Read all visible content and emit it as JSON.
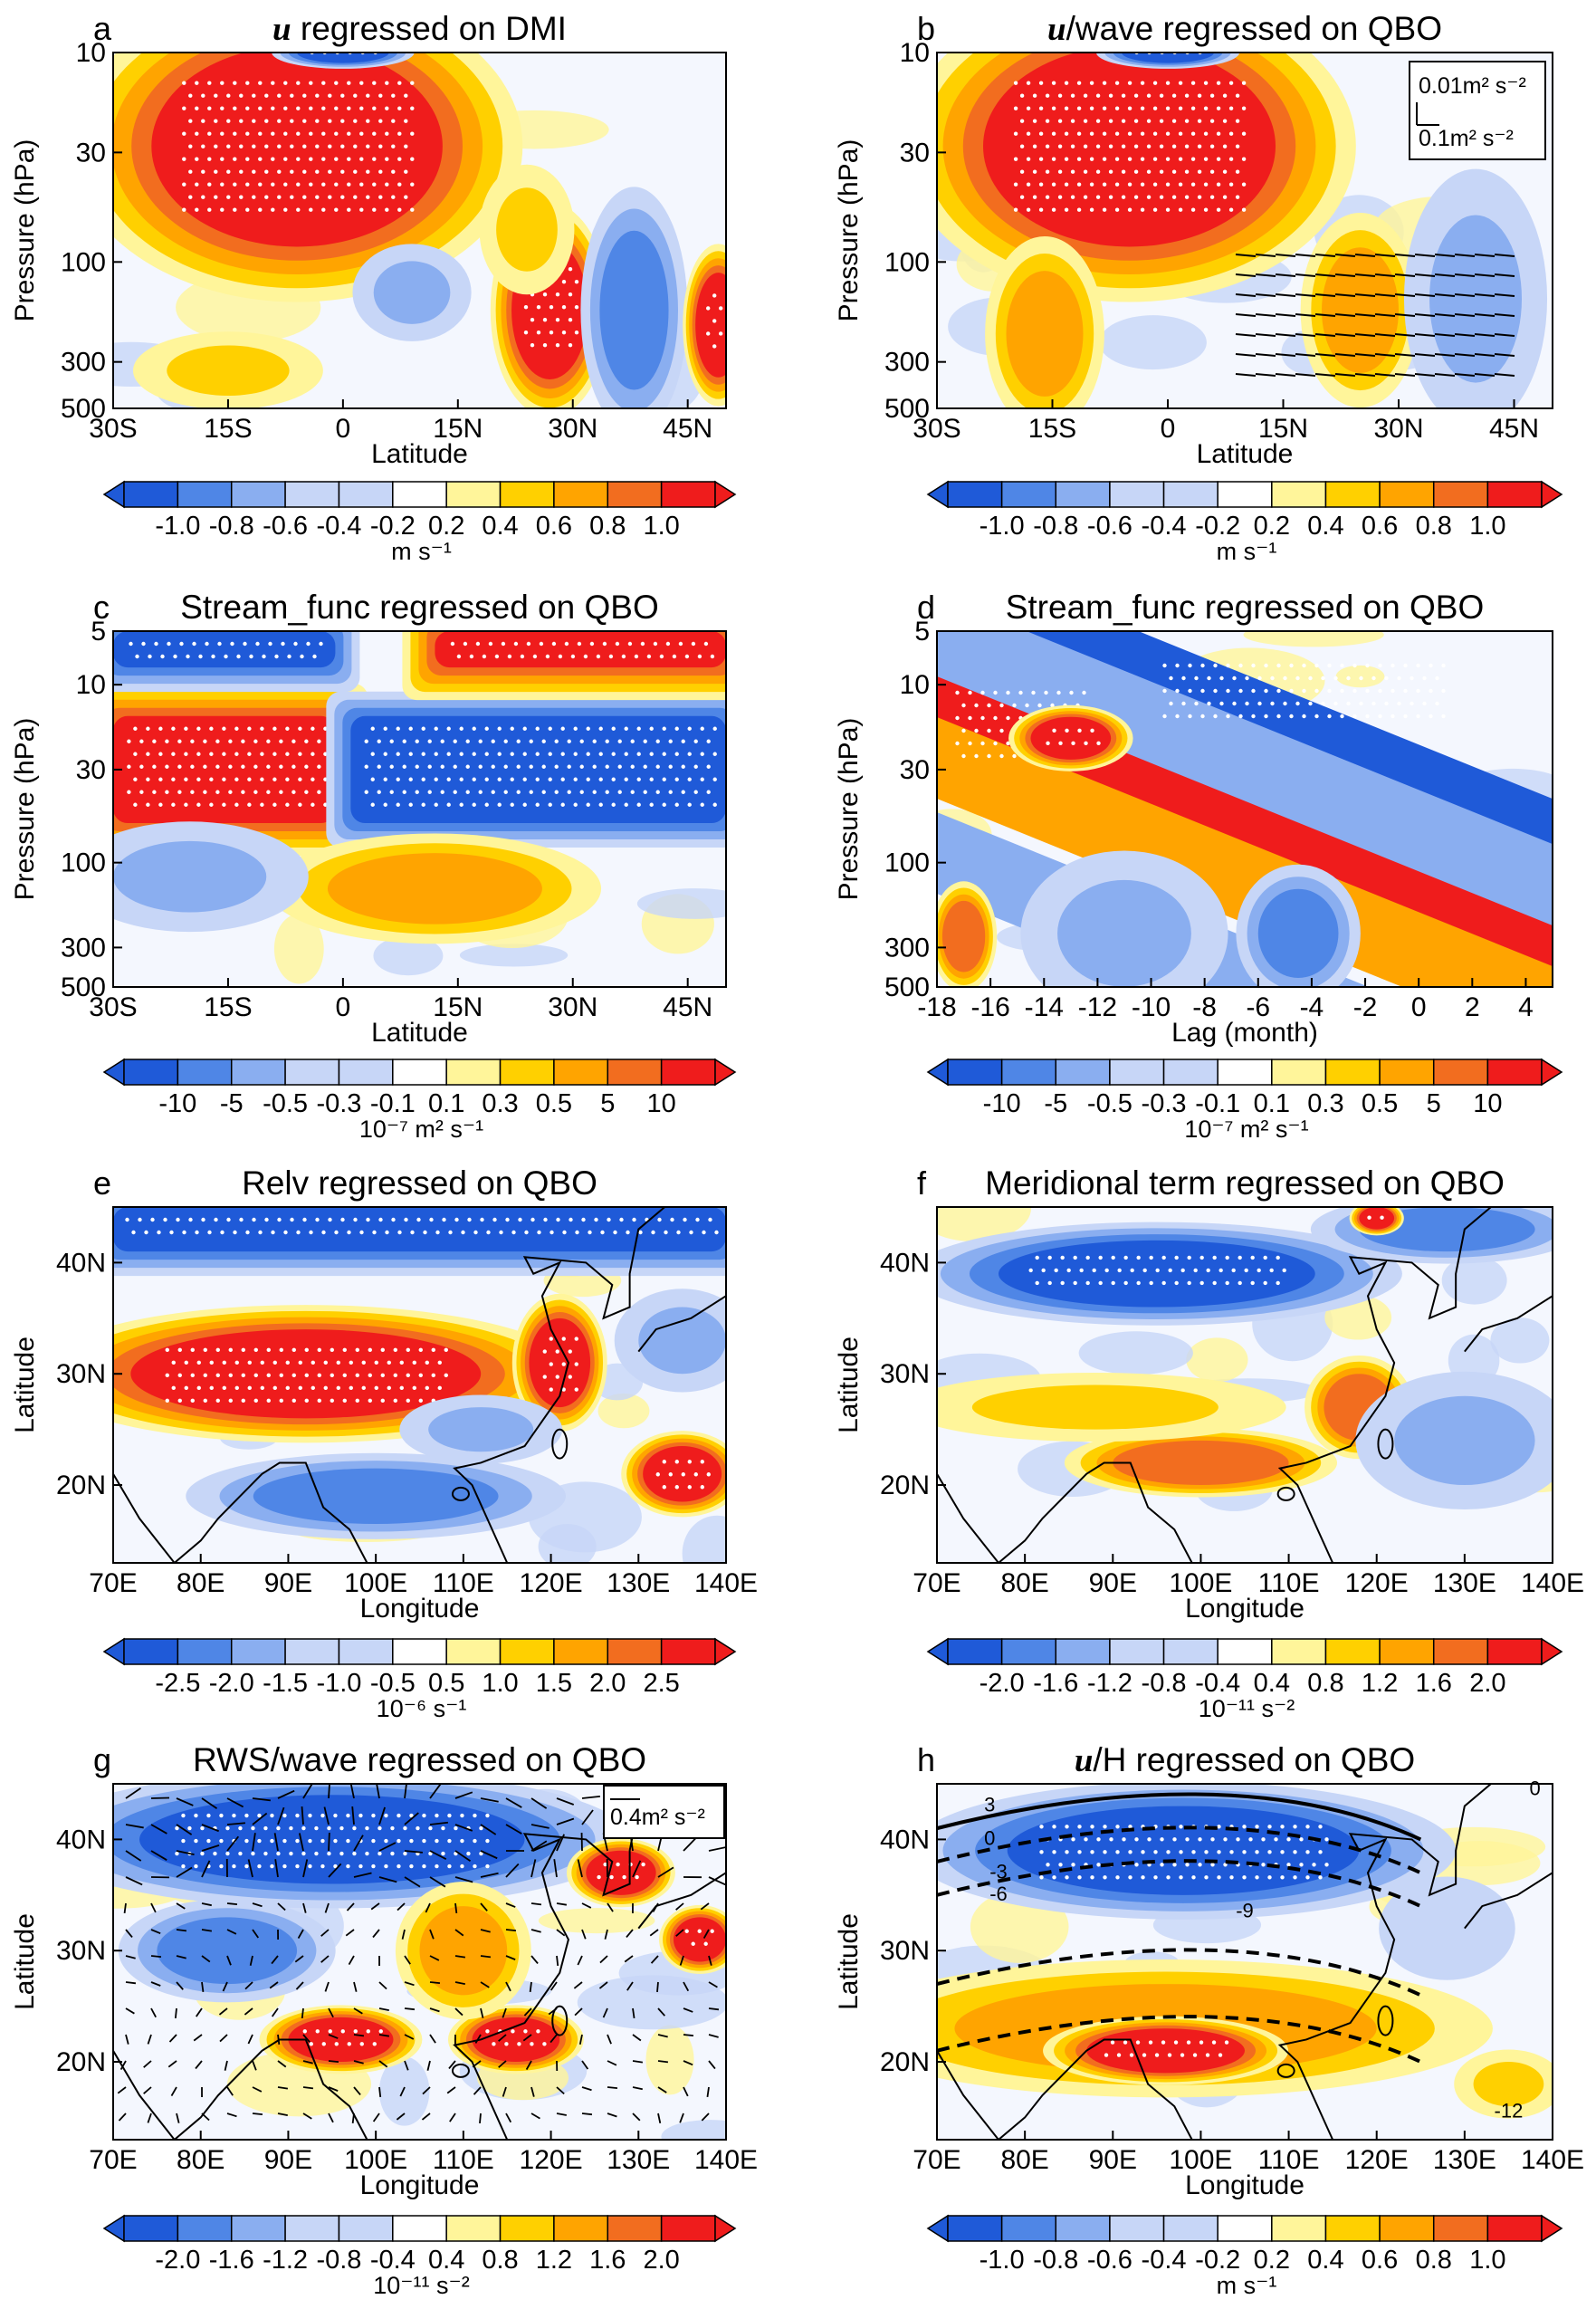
{
  "colors": {
    "scale": [
      "#1f5ad8",
      "#4f86e6",
      "#8aaef0",
      "#c7d6f7",
      "#ffffff",
      "#fff59a",
      "#ffd000",
      "#ffa400",
      "#f26d1f",
      "#ef1c1c"
    ],
    "stipple": "#ffffff",
    "frame": "#000000"
  },
  "colorbars": {
    "cb_ms": {
      "labels": [
        "-1.0",
        "-0.8",
        "-0.6",
        "-0.4",
        "-0.2",
        "0.2",
        "0.4",
        "0.6",
        "0.8",
        "1.0"
      ],
      "unit": "m s⁻¹"
    },
    "cb_stream": {
      "labels": [
        "-10",
        "-5",
        "-0.5",
        "-0.3",
        "-0.1",
        "0.1",
        "0.3",
        "0.5",
        "5",
        "10"
      ],
      "unit": "10⁻⁷ m² s⁻¹"
    },
    "cb_relv": {
      "labels": [
        "-2.5",
        "-2.0",
        "-1.5",
        "-1.0",
        "-0.5",
        "0.5",
        "1.0",
        "1.5",
        "2.0",
        "2.5"
      ],
      "unit": "10⁻⁶ s⁻¹"
    },
    "cb_mer": {
      "labels": [
        "-2.0",
        "-1.6",
        "-1.2",
        "-0.8",
        "-0.4",
        "0.4",
        "0.8",
        "1.2",
        "1.6",
        "2.0"
      ],
      "unit": "10⁻¹¹ s⁻²"
    }
  },
  "chart_data": [
    {
      "id": "a",
      "type": "heatmap",
      "label": "a",
      "title_bold": "u",
      "title_rest": " regressed on DMI",
      "xlabel": "Latitude",
      "ylabel": "Pressure (hPa)",
      "x_ticks": [
        "30S",
        "15S",
        "0",
        "15N",
        "30N",
        "45N"
      ],
      "x_values": [
        -30,
        -15,
        0,
        15,
        30,
        45
      ],
      "xlim": [
        -30,
        50
      ],
      "y_ticks": [
        "10",
        "30",
        "100",
        "300",
        "500"
      ],
      "y_values": [
        10,
        30,
        100,
        300,
        500
      ],
      "ylim": [
        10,
        500
      ],
      "y_scale": "log",
      "colorbar": "cb_ms",
      "features": [
        {
          "kind": "blob",
          "x": -6,
          "y": 28,
          "rx": 19,
          "ry": 0.48,
          "level": 9
        },
        {
          "kind": "blob",
          "x": 27,
          "y": 170,
          "rx": 5,
          "ry": 0.33,
          "level": 9
        },
        {
          "kind": "blob",
          "x": 9,
          "y": 140,
          "rx": 5,
          "ry": 0.15,
          "level": 2
        },
        {
          "kind": "blob",
          "x": 38,
          "y": 170,
          "rx": 4.5,
          "ry": 0.38,
          "level": 1
        },
        {
          "kind": "blob",
          "x": 49,
          "y": 200,
          "rx": 3,
          "ry": 0.25,
          "level": 9
        },
        {
          "kind": "blob",
          "x": -15,
          "y": 330,
          "rx": 8,
          "ry": 0.12,
          "level": 6
        },
        {
          "kind": "blob",
          "x": 0,
          "y": 10,
          "rx": 6,
          "ry": 0.05,
          "level": 0
        },
        {
          "kind": "blob",
          "x": 24,
          "y": 70,
          "rx": 4,
          "ry": 0.2,
          "level": 6
        }
      ]
    },
    {
      "id": "b",
      "type": "heatmap",
      "label": "b",
      "title_bold": "u",
      "title_rest": "/wave regressed on QBO",
      "xlabel": "Latitude",
      "ylabel": "Pressure (hPa)",
      "x_ticks": [
        "30S",
        "15S",
        "0",
        "15N",
        "30N",
        "45N"
      ],
      "x_values": [
        -30,
        -15,
        0,
        15,
        30,
        45
      ],
      "xlim": [
        -30,
        50
      ],
      "y_ticks": [
        "10",
        "30",
        "100",
        "300",
        "500"
      ],
      "y_values": [
        10,
        30,
        100,
        300,
        500
      ],
      "ylim": [
        10,
        500
      ],
      "y_scale": "log",
      "colorbar": "cb_ms",
      "vector_legend": [
        "0.01m² s⁻²",
        "0.1m² s⁻²"
      ],
      "features": [
        {
          "kind": "blob",
          "x": -5,
          "y": 28,
          "rx": 19,
          "ry": 0.48,
          "level": 9
        },
        {
          "kind": "blob",
          "x": 25,
          "y": 170,
          "rx": 5,
          "ry": 0.3,
          "level": 7
        },
        {
          "kind": "blob",
          "x": 40,
          "y": 150,
          "rx": 6,
          "ry": 0.4,
          "level": 2
        },
        {
          "kind": "blob",
          "x": -16,
          "y": 220,
          "rx": 5,
          "ry": 0.3,
          "level": 7
        },
        {
          "kind": "blob",
          "x": 0,
          "y": 10,
          "rx": 6,
          "ry": 0.05,
          "level": 0
        }
      ]
    },
    {
      "id": "c",
      "type": "heatmap",
      "label": "c",
      "title_bold": "",
      "title_rest": "Stream_func regressed on QBO",
      "xlabel": "Latitude",
      "ylabel": "Pressure (hPa)",
      "x_ticks": [
        "30S",
        "15S",
        "0",
        "15N",
        "30N",
        "45N"
      ],
      "x_values": [
        -30,
        -15,
        0,
        15,
        30,
        45
      ],
      "xlim": [
        -30,
        50
      ],
      "y_ticks": [
        "5",
        "10",
        "30",
        "100",
        "300",
        "500"
      ],
      "y_values": [
        5,
        10,
        30,
        100,
        300,
        500
      ],
      "ylim": [
        5,
        500
      ],
      "y_scale": "log",
      "colorbar": "cb_stream",
      "features": [
        {
          "kind": "band",
          "x0": -30,
          "x1": -1,
          "y0": 15,
          "y1": 60,
          "level": 9
        },
        {
          "kind": "band",
          "x0": 1,
          "x1": 50,
          "y0": 15,
          "y1": 60,
          "level": 0
        },
        {
          "kind": "band",
          "x0": -30,
          "x1": -1,
          "y0": 5,
          "y1": 8,
          "level": 0
        },
        {
          "kind": "band",
          "x0": 12,
          "x1": 50,
          "y0": 5,
          "y1": 8,
          "level": 9
        },
        {
          "kind": "blob",
          "x": 12,
          "y": 140,
          "rx": 14,
          "ry": 0.2,
          "level": 7
        },
        {
          "kind": "blob",
          "x": -20,
          "y": 120,
          "rx": 10,
          "ry": 0.2,
          "level": 2
        }
      ]
    },
    {
      "id": "d",
      "type": "heatmap",
      "label": "d",
      "title_bold": "",
      "title_rest": "Stream_func regressed on QBO",
      "xlabel": "Lag (month)",
      "ylabel": "Pressure (hPa)",
      "x_ticks": [
        "-18",
        "-16",
        "-14",
        "-12",
        "-10",
        "-8",
        "-6",
        "-4",
        "-2",
        "0",
        "2",
        "4"
      ],
      "x_values": [
        -18,
        -16,
        -14,
        -12,
        -10,
        -8,
        -6,
        -4,
        -2,
        0,
        2,
        4
      ],
      "xlim": [
        -18,
        5
      ],
      "y_ticks": [
        "5",
        "10",
        "30",
        "100",
        "300",
        "500"
      ],
      "y_values": [
        5,
        10,
        30,
        100,
        300,
        500
      ],
      "ylim": [
        5,
        500
      ],
      "y_scale": "log",
      "colorbar": "cb_stream",
      "features": [
        {
          "kind": "diag",
          "level": 9
        },
        {
          "kind": "blob",
          "x": -13,
          "y": 20,
          "rx": 1.5,
          "ry": 0.12,
          "level": 9
        },
        {
          "kind": "blob",
          "x": -11,
          "y": 250,
          "rx": 2.5,
          "ry": 0.3,
          "level": 2
        },
        {
          "kind": "blob",
          "x": -4.5,
          "y": 250,
          "rx": 1.5,
          "ry": 0.25,
          "level": 1
        },
        {
          "kind": "blob",
          "x": -17,
          "y": 260,
          "rx": 0.8,
          "ry": 0.2,
          "level": 8
        }
      ]
    },
    {
      "id": "e",
      "type": "heatmap",
      "label": "e",
      "title_bold": "",
      "title_rest": "Relv regressed on QBO",
      "xlabel": "Longitude",
      "ylabel": "Latitude",
      "x_ticks": [
        "70E",
        "80E",
        "90E",
        "100E",
        "110E",
        "120E",
        "130E",
        "140E"
      ],
      "x_values": [
        70,
        80,
        90,
        100,
        110,
        120,
        130,
        140
      ],
      "xlim": [
        70,
        140
      ],
      "y_ticks": [
        "20N",
        "30N",
        "40N"
      ],
      "y_values": [
        20,
        30,
        40
      ],
      "ylim": [
        13,
        45
      ],
      "colorbar": "cb_relv",
      "features": [
        {
          "kind": "band",
          "x0": 70,
          "x1": 140,
          "y0": 41,
          "y1": 45,
          "level": 0
        },
        {
          "kind": "blob",
          "x": 92,
          "y": 30,
          "rx": 20,
          "ry": 4,
          "level": 9
        },
        {
          "kind": "blob",
          "x": 121,
          "y": 31,
          "rx": 3.5,
          "ry": 4,
          "level": 9
        },
        {
          "kind": "blob",
          "x": 135,
          "y": 21,
          "rx": 4.5,
          "ry": 2.5,
          "level": 9
        },
        {
          "kind": "blob",
          "x": 100,
          "y": 19,
          "rx": 14,
          "ry": 2.5,
          "level": 1
        },
        {
          "kind": "blob",
          "x": 112,
          "y": 25,
          "rx": 6,
          "ry": 2,
          "level": 2
        },
        {
          "kind": "blob",
          "x": 135,
          "y": 33,
          "rx": 5,
          "ry": 3,
          "level": 2
        }
      ]
    },
    {
      "id": "f",
      "type": "heatmap",
      "label": "f",
      "title_bold": "",
      "title_rest": "Meridional term regressed on QBO",
      "xlabel": "Longitude",
      "ylabel": "Latitude",
      "x_ticks": [
        "70E",
        "80E",
        "90E",
        "100E",
        "110E",
        "120E",
        "130E",
        "140E"
      ],
      "x_values": [
        70,
        80,
        90,
        100,
        110,
        120,
        130,
        140
      ],
      "xlim": [
        70,
        140
      ],
      "y_ticks": [
        "20N",
        "30N",
        "40N"
      ],
      "y_values": [
        20,
        30,
        40
      ],
      "ylim": [
        13,
        45
      ],
      "colorbar": "cb_mer",
      "features": [
        {
          "kind": "blob",
          "x": 95,
          "y": 39,
          "rx": 18,
          "ry": 3,
          "level": 0
        },
        {
          "kind": "blob",
          "x": 128,
          "y": 43,
          "rx": 10,
          "ry": 2,
          "level": 1
        },
        {
          "kind": "blob",
          "x": 100,
          "y": 22,
          "rx": 10,
          "ry": 2,
          "level": 8
        },
        {
          "kind": "blob",
          "x": 118,
          "y": 27,
          "rx": 4,
          "ry": 3,
          "level": 8
        },
        {
          "kind": "blob",
          "x": 88,
          "y": 27,
          "rx": 14,
          "ry": 2,
          "level": 6
        },
        {
          "kind": "blob",
          "x": 130,
          "y": 24,
          "rx": 8,
          "ry": 4,
          "level": 2
        },
        {
          "kind": "blob",
          "x": 120,
          "y": 44,
          "rx": 2,
          "ry": 1,
          "level": 9
        }
      ]
    },
    {
      "id": "g",
      "type": "heatmap",
      "label": "g",
      "title_bold": "",
      "title_rest": "RWS/wave regressed on QBO",
      "xlabel": "Longitude",
      "ylabel": "Latitude",
      "x_ticks": [
        "70E",
        "80E",
        "90E",
        "100E",
        "110E",
        "120E",
        "130E",
        "140E"
      ],
      "x_values": [
        70,
        80,
        90,
        100,
        110,
        120,
        130,
        140
      ],
      "xlim": [
        70,
        140
      ],
      "y_ticks": [
        "20N",
        "30N",
        "40N"
      ],
      "y_values": [
        20,
        30,
        40
      ],
      "ylim": [
        13,
        45
      ],
      "colorbar": "cb_mer",
      "vector_legend": [
        "0.4m² s⁻²"
      ],
      "features": [
        {
          "kind": "blob",
          "x": 95,
          "y": 40,
          "rx": 22,
          "ry": 4,
          "level": 0
        },
        {
          "kind": "blob",
          "x": 96,
          "y": 22,
          "rx": 6,
          "ry": 2,
          "level": 9
        },
        {
          "kind": "blob",
          "x": 116,
          "y": 22,
          "rx": 5,
          "ry": 2,
          "level": 9
        },
        {
          "kind": "blob",
          "x": 128,
          "y": 37,
          "rx": 4,
          "ry": 2,
          "level": 9
        },
        {
          "kind": "blob",
          "x": 83,
          "y": 30,
          "rx": 8,
          "ry": 3,
          "level": 1
        },
        {
          "kind": "blob",
          "x": 110,
          "y": 30,
          "rx": 5,
          "ry": 4,
          "level": 7
        },
        {
          "kind": "blob",
          "x": 137,
          "y": 31,
          "rx": 3,
          "ry": 2,
          "level": 9
        }
      ]
    },
    {
      "id": "h",
      "type": "heatmap",
      "label": "h",
      "title_bold": "u",
      "title_rest": "/H regressed on QBO",
      "xlabel": "Longitude",
      "ylabel": "Latitude",
      "x_ticks": [
        "70E",
        "80E",
        "90E",
        "100E",
        "110E",
        "120E",
        "130E",
        "140E"
      ],
      "x_values": [
        70,
        80,
        90,
        100,
        110,
        120,
        130,
        140
      ],
      "xlim": [
        70,
        140
      ],
      "y_ticks": [
        "20N",
        "30N",
        "40N"
      ],
      "y_values": [
        20,
        30,
        40
      ],
      "ylim": [
        13,
        45
      ],
      "colorbar": "cb_ms",
      "contour_labels": [
        "3",
        "0",
        "-3",
        "-6",
        "-9",
        "-12",
        "0"
      ],
      "features": [
        {
          "kind": "blob",
          "x": 98,
          "y": 39,
          "rx": 20,
          "ry": 4,
          "level": 0
        },
        {
          "kind": "blob",
          "x": 96,
          "y": 23,
          "rx": 24,
          "ry": 4,
          "level": 7
        },
        {
          "kind": "blob",
          "x": 96,
          "y": 21,
          "rx": 9,
          "ry": 2,
          "level": 9
        },
        {
          "kind": "blob",
          "x": 135,
          "y": 18,
          "rx": 4,
          "ry": 2,
          "level": 6
        },
        {
          "kind": "blob",
          "x": 128,
          "y": 32,
          "rx": 5,
          "ry": 3,
          "level": 3
        }
      ]
    }
  ]
}
